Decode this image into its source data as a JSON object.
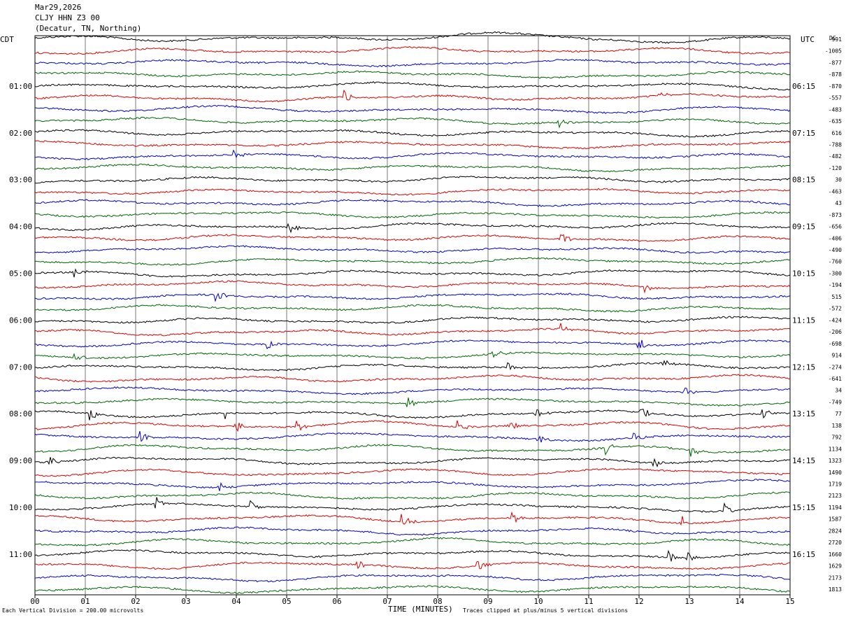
{
  "header": {
    "date": "Mar29,2026",
    "station": "CLJY HHN Z3 00",
    "location": "(Decatur, TN, Northing)"
  },
  "left_tz": "CDT",
  "right_tz": "UTC",
  "dc_label": "DC",
  "footer": {
    "scale": "Each Vertical Division =  200.00 microvolts",
    "xlabel": "TIME (MINUTES)",
    "clip_note": "Traces clipped at plus/minus 5 vertical divisions"
  },
  "chart_data": {
    "type": "line",
    "title": "Mar29,2026 CLJY HHN Z3 00 (Decatur, TN, Northing)",
    "xlabel": "TIME (MINUTES)",
    "x_ticks": [
      "00",
      "01",
      "02",
      "03",
      "04",
      "05",
      "06",
      "07",
      "08",
      "09",
      "10",
      "11",
      "12",
      "13",
      "14",
      "15"
    ],
    "xlim": [
      0,
      15
    ],
    "grid": "vertical lines each minute",
    "trace_colors": [
      "#000000",
      "#dd0000",
      "#0000cc",
      "#006600"
    ],
    "left_labels": [
      "01:00",
      "02:00",
      "03:00",
      "04:00",
      "05:00",
      "06:00",
      "07:00",
      "08:00",
      "09:00",
      "10:00",
      "11:00"
    ],
    "right_labels": [
      "06:15",
      "07:15",
      "08:15",
      "09:15",
      "10:15",
      "11:15",
      "12:15",
      "13:15",
      "14:15",
      "15:15",
      "16:15"
    ],
    "label_every_n_traces": 4,
    "dc_offsets": [
      "-991",
      "-1005",
      "-877",
      "-878",
      "-870",
      "-557",
      "-483",
      "-635",
      "616",
      "-788",
      "-482",
      "-120",
      "30",
      "-463",
      "43",
      "-873",
      "-656",
      "-406",
      "-490",
      "-760",
      "-300",
      "-194",
      "515",
      "-572",
      "-424",
      "-206",
      "-698",
      "914",
      "-274",
      "-641",
      "34",
      "-749",
      "77",
      "138",
      "792",
      "1134",
      "1323",
      "1490",
      "1719",
      "2123",
      "1194",
      "1587",
      "2824",
      "2720",
      "1660",
      "1629",
      "2173",
      "1813"
    ],
    "events": [
      {
        "trace": 0,
        "minute": 8.9,
        "note": "large long-period bump"
      },
      {
        "trace": 5,
        "minute": 6.15
      },
      {
        "trace": 5,
        "minute": 12.4
      },
      {
        "trace": 7,
        "minute": 10.4
      },
      {
        "trace": 10,
        "minute": 3.95
      },
      {
        "trace": 16,
        "minute": 5.05
      },
      {
        "trace": 17,
        "minute": 10.45
      },
      {
        "trace": 20,
        "minute": 0.8
      },
      {
        "trace": 21,
        "minute": 12.1
      },
      {
        "trace": 22,
        "minute": 3.6
      },
      {
        "trace": 25,
        "minute": 10.45
      },
      {
        "trace": 26,
        "minute": 4.6
      },
      {
        "trace": 26,
        "minute": 12.0
      },
      {
        "trace": 27,
        "minute": 0.8
      },
      {
        "trace": 27,
        "minute": 9.1
      },
      {
        "trace": 28,
        "minute": 9.4
      },
      {
        "trace": 28,
        "minute": 12.45
      },
      {
        "trace": 30,
        "minute": 12.9
      },
      {
        "trace": 31,
        "minute": 7.4
      },
      {
        "trace": 32,
        "minute": 1.1
      },
      {
        "trace": 32,
        "minute": 3.8
      },
      {
        "trace": 32,
        "minute": 9.95
      },
      {
        "trace": 32,
        "minute": 12.05
      },
      {
        "trace": 32,
        "minute": 14.45
      },
      {
        "trace": 33,
        "minute": 4.0
      },
      {
        "trace": 33,
        "minute": 5.2
      },
      {
        "trace": 33,
        "minute": 8.4
      },
      {
        "trace": 33,
        "minute": 9.4
      },
      {
        "trace": 34,
        "minute": 2.1
      },
      {
        "trace": 34,
        "minute": 10.0
      },
      {
        "trace": 34,
        "minute": 11.9
      },
      {
        "trace": 35,
        "minute": 11.35
      },
      {
        "trace": 35,
        "minute": 13.05
      },
      {
        "trace": 36,
        "minute": 0.3
      },
      {
        "trace": 36,
        "minute": 12.3
      },
      {
        "trace": 38,
        "minute": 3.65
      },
      {
        "trace": 40,
        "minute": 2.4
      },
      {
        "trace": 40,
        "minute": 4.3
      },
      {
        "trace": 40,
        "minute": 13.7
      },
      {
        "trace": 41,
        "minute": 7.3
      },
      {
        "trace": 41,
        "minute": 9.5
      },
      {
        "trace": 41,
        "minute": 12.85
      },
      {
        "trace": 44,
        "minute": 12.6
      },
      {
        "trace": 44,
        "minute": 12.95
      },
      {
        "trace": 45,
        "minute": 6.4
      },
      {
        "trace": 45,
        "minute": 8.8
      }
    ]
  }
}
